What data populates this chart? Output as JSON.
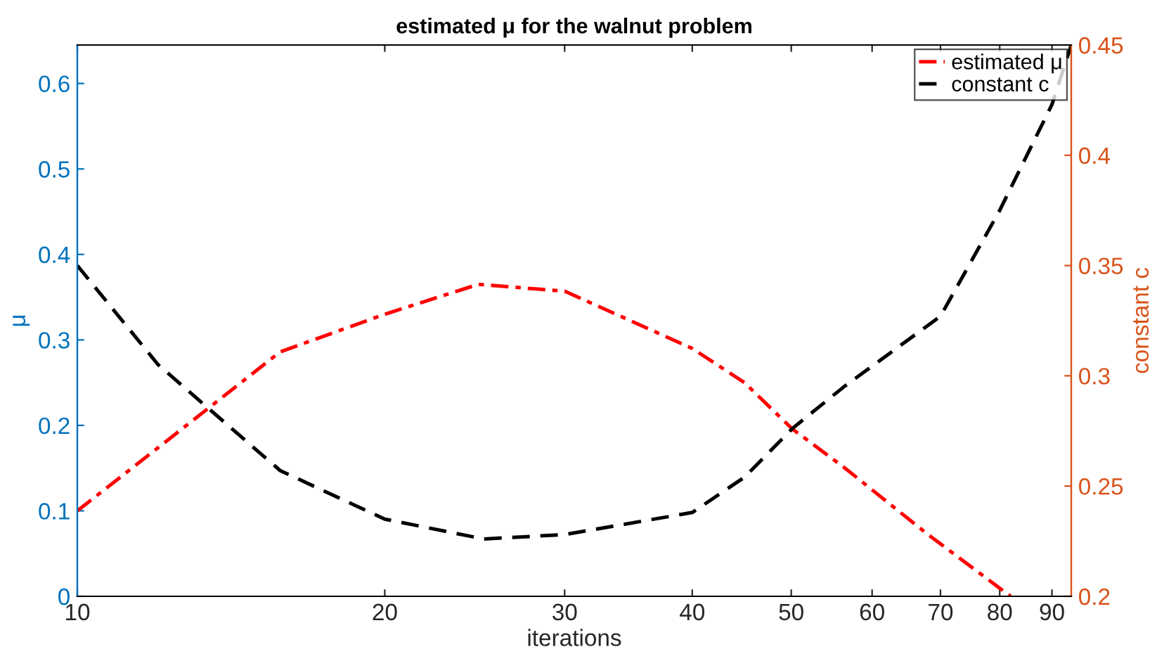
{
  "chart_data": {
    "type": "line",
    "title": "estimated μ for the walnut problem",
    "xlabel": "iterations",
    "ylabel": "μ",
    "y2label": "constant c",
    "log": "x",
    "grid": false,
    "legend": "top right",
    "xlim": [
      10,
      94
    ],
    "xticks": [
      10,
      20,
      30,
      40,
      50,
      60,
      70,
      80,
      90
    ],
    "ylim": [
      0,
      0.645
    ],
    "yticks": [
      0,
      0.1,
      0.2,
      0.3,
      0.4,
      0.5,
      0.6
    ],
    "y2lim": [
      0.2,
      0.45
    ],
    "y2ticks": [
      0.2,
      0.25,
      0.3,
      0.35,
      0.4,
      0.45
    ],
    "series": [
      {
        "name": "estimated μ",
        "color": "#ff0000",
        "line_style": "dashdot",
        "x": [
          10,
          12,
          15.8,
          20,
          24.7,
          30,
          40,
          45,
          50.1,
          56.3,
          68.1,
          82
        ],
        "values": [
          0.1,
          0.174,
          0.286,
          0.33,
          0.365,
          0.357,
          0.29,
          0.25,
          0.196,
          0.151,
          0.072,
          0
        ]
      },
      {
        "name": "constant c",
        "color": "#000000",
        "line_style": "dashed",
        "axis": "y2",
        "x": [
          10,
          12,
          15.8,
          20,
          25,
          30,
          40,
          45,
          50.1,
          56.3,
          70,
          80,
          90,
          94
        ],
        "values": [
          0.35,
          0.305,
          0.257,
          0.235,
          0.226,
          0.228,
          0.238,
          0.254,
          0.276,
          0.295,
          0.327,
          0.375,
          0.423,
          0.45
        ]
      }
    ]
  }
}
